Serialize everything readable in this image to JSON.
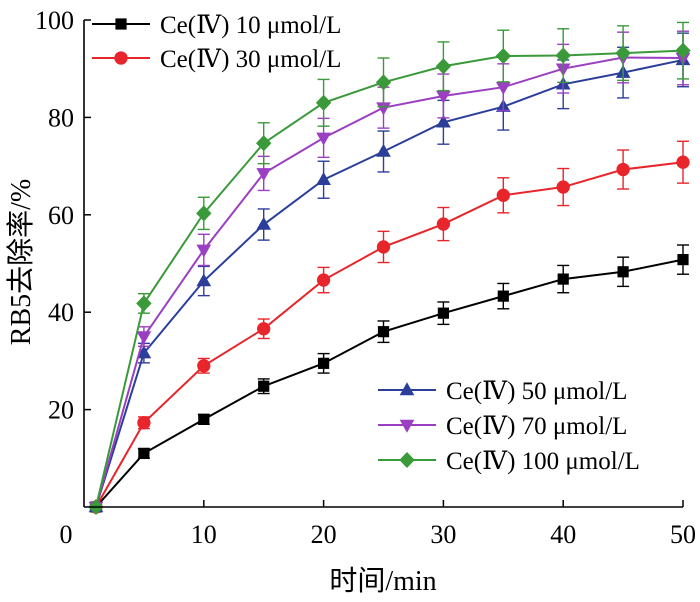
{
  "chart_data": {
    "type": "line",
    "xlabel": "时间/min",
    "ylabel": "RB5去除率/%",
    "xlim": [
      0,
      50
    ],
    "ylim": [
      0,
      100
    ],
    "x_ticks": [
      0,
      10,
      20,
      30,
      40,
      50
    ],
    "y_ticks": [
      20,
      40,
      60,
      80,
      100
    ],
    "y_origin_label": "0",
    "grid": false,
    "legend": [
      {
        "position": "top-left",
        "series": [
          0,
          1
        ]
      },
      {
        "position": "bottom-right",
        "series": [
          2,
          3,
          4
        ]
      }
    ],
    "x": [
      1,
      5,
      10,
      15,
      20,
      25,
      30,
      35,
      40,
      45,
      50
    ],
    "series": [
      {
        "name": "Ce(Ⅳ) 10 μmol/L",
        "color": "#000000",
        "marker": "square",
        "values": [
          0,
          11,
          18,
          24.8,
          29.5,
          36,
          39.8,
          43.3,
          46.8,
          48.3,
          50.8
        ],
        "errors": [
          0,
          1,
          1,
          1.5,
          2,
          2.2,
          2.3,
          2.6,
          2.8,
          3,
          3
        ]
      },
      {
        "name": "Ce(Ⅳ) 30 μmol/L",
        "color": "#e8252a",
        "marker": "circle",
        "values": [
          0,
          17.3,
          29,
          36.6,
          46.6,
          53.4,
          58.1,
          64,
          65.7,
          69.3,
          70.8
        ],
        "errors": [
          0,
          1.2,
          1.5,
          2,
          2.6,
          3.2,
          3.4,
          3.6,
          3.8,
          4,
          4.3
        ]
      },
      {
        "name": "Ce(Ⅳ) 50 μmol/L",
        "color": "#2b3f9a",
        "marker": "triangle-up",
        "values": [
          0,
          31.6,
          46.4,
          58,
          67.2,
          73,
          79,
          82.2,
          86.8,
          89.2,
          91.8
        ],
        "errors": [
          0,
          2,
          3,
          3.2,
          3.8,
          4.2,
          4.5,
          4.8,
          5,
          5.2,
          5.5
        ]
      },
      {
        "name": "Ce(Ⅳ) 70 μmol/L",
        "color": "#9b3fc2",
        "marker": "triangle-down",
        "values": [
          0,
          35,
          52.8,
          68.5,
          75.8,
          82,
          84.4,
          86.2,
          90,
          92.3,
          92.2
        ],
        "errors": [
          0,
          2,
          3.2,
          3.5,
          4,
          4.2,
          4.5,
          4.8,
          5,
          5.2,
          5.5
        ]
      },
      {
        "name": "Ce(Ⅳ) 100 μmol/L",
        "color": "#3a9a3a",
        "marker": "diamond",
        "values": [
          0,
          41.8,
          60.3,
          74.7,
          83,
          87.2,
          90.5,
          92.6,
          92.7,
          93.2,
          93.7
        ],
        "errors": [
          0,
          2,
          3.3,
          4.2,
          4.8,
          5,
          5,
          5.3,
          5.5,
          5.6,
          5.8
        ]
      }
    ]
  }
}
